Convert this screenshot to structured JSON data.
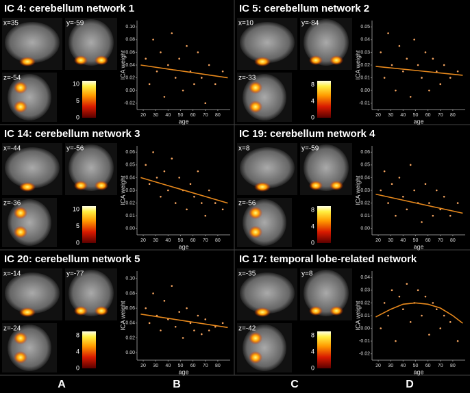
{
  "chart_data": [
    {
      "type": "scatter",
      "title": "IC 4: cerebellum network 1",
      "slices": [
        "x=35",
        "y=-59",
        "z=-54"
      ],
      "colorbar": {
        "lim": [
          0,
          11
        ],
        "ticks": [
          0,
          5,
          10
        ]
      },
      "x": [
        22,
        25,
        28,
        31,
        34,
        37,
        40,
        43,
        46,
        49,
        52,
        55,
        58,
        61,
        64,
        67,
        70,
        73,
        78,
        84
      ],
      "y": [
        0.05,
        0.01,
        0.08,
        0.03,
        0.06,
        -0.01,
        0.04,
        0.09,
        0.02,
        0.05,
        0.0,
        0.07,
        0.03,
        0.01,
        0.06,
        0.02,
        -0.02,
        0.04,
        0.01,
        0.03
      ],
      "color": "#f4a460",
      "fit": {
        "x": [
          18,
          88
        ],
        "y": [
          0.04,
          0.02
        ],
        "color": "#e8891c"
      },
      "xlabel": "age",
      "ylabel": "ICA weight",
      "xlim": [
        15,
        90
      ],
      "xticks": [
        20,
        30,
        40,
        50,
        60,
        70,
        80
      ],
      "ylim": [
        -0.03,
        0.11
      ],
      "yticks": [
        {
          "value": -0.02,
          "label": "-0.02"
        },
        {
          "value": 0,
          "label": "0.00"
        },
        {
          "value": 0.02,
          "label": "0.02"
        },
        {
          "value": 0.04,
          "label": "0.04"
        },
        {
          "value": 0.06,
          "label": "0.06"
        },
        {
          "value": 0.08,
          "label": "0.08"
        },
        {
          "value": 0.1,
          "label": "0.10"
        }
      ]
    },
    {
      "type": "scatter",
      "title": "IC 5:  cerebellum network 2",
      "slices": [
        "x=10",
        "y=-84",
        "z=-33"
      ],
      "colorbar": {
        "lim": [
          0,
          9
        ],
        "ticks": [
          0,
          4,
          8
        ]
      },
      "x": [
        22,
        25,
        28,
        31,
        34,
        37,
        40,
        43,
        46,
        49,
        52,
        55,
        58,
        61,
        64,
        67,
        70,
        73,
        78,
        84
      ],
      "y": [
        0.03,
        0.01,
        0.045,
        0.02,
        0.0,
        0.035,
        0.015,
        0.025,
        -0.005,
        0.04,
        0.02,
        0.01,
        0.03,
        0.0,
        0.025,
        0.015,
        0.005,
        0.02,
        0.01,
        0.015
      ],
      "color": "#f4a460",
      "fit": {
        "x": [
          18,
          88
        ],
        "y": [
          0.019,
          0.012
        ],
        "color": "#e8891c"
      },
      "xlabel": "age",
      "ylabel": "ICA weight",
      "xlim": [
        15,
        90
      ],
      "xticks": [
        20,
        30,
        40,
        50,
        60,
        70,
        80
      ],
      "ylim": [
        -0.015,
        0.055
      ],
      "yticks": [
        {
          "value": -0.01,
          "label": "-0.01"
        },
        {
          "value": 0,
          "label": "0.00"
        },
        0.01,
        0.02,
        0.03,
        0.04,
        0.05
      ]
    },
    {
      "type": "scatter",
      "title": "IC 14:  cerebellum network 3",
      "slices": [
        "x=-44",
        "y=-56",
        "z=-36"
      ],
      "colorbar": {
        "lim": [
          0,
          11
        ],
        "ticks": [
          0,
          5,
          10
        ]
      },
      "x": [
        22,
        25,
        28,
        31,
        34,
        37,
        40,
        43,
        46,
        49,
        52,
        55,
        58,
        61,
        64,
        67,
        70,
        73,
        78,
        84
      ],
      "y": [
        0.05,
        0.035,
        0.06,
        0.04,
        0.025,
        0.045,
        0.03,
        0.055,
        0.02,
        0.04,
        0.03,
        0.015,
        0.035,
        0.025,
        0.045,
        0.02,
        0.01,
        0.03,
        0.02,
        0.015
      ],
      "color": "#f4a460",
      "fit": {
        "x": [
          18,
          88
        ],
        "y": [
          0.04,
          0.02
        ],
        "color": "#e8891c"
      },
      "xlabel": "age",
      "ylabel": "ICA weight",
      "xlim": [
        15,
        90
      ],
      "xticks": [
        20,
        30,
        40,
        50,
        60,
        70,
        80
      ],
      "ylim": [
        -0.005,
        0.065
      ],
      "yticks": [
        {
          "value": 0,
          "label": "0.00"
        },
        0.01,
        0.02,
        0.03,
        0.04,
        0.05,
        0.06
      ]
    },
    {
      "type": "scatter",
      "title": "IC 19:  cerebellum network 4",
      "slices": [
        "x=8",
        "y=-59",
        "z=-56"
      ],
      "colorbar": {
        "lim": [
          0,
          9
        ],
        "ticks": [
          0,
          4,
          8
        ]
      },
      "x": [
        22,
        25,
        28,
        31,
        34,
        37,
        40,
        43,
        46,
        49,
        52,
        55,
        58,
        61,
        64,
        67,
        70,
        73,
        78,
        84
      ],
      "y": [
        0.03,
        0.045,
        0.02,
        0.035,
        0.01,
        0.04,
        0.025,
        0.015,
        0.05,
        0.03,
        0.02,
        0.005,
        0.035,
        0.02,
        0.01,
        0.03,
        0.015,
        0.025,
        0.01,
        0.02
      ],
      "color": "#f4a460",
      "fit": {
        "x": [
          18,
          88
        ],
        "y": [
          0.027,
          0.012
        ],
        "color": "#e8891c"
      },
      "xlabel": "age",
      "ylabel": "ICA weight",
      "xlim": [
        15,
        90
      ],
      "xticks": [
        20,
        30,
        40,
        50,
        60,
        70,
        80
      ],
      "ylim": [
        -0.005,
        0.065
      ],
      "yticks": [
        {
          "value": 0,
          "label": "0.00"
        },
        0.01,
        0.02,
        0.03,
        0.04,
        0.05,
        0.06
      ]
    },
    {
      "type": "scatter",
      "title": "IC 20:  cerebellum network 5",
      "slices": [
        "x=-14",
        "y=-77",
        "z=-24"
      ],
      "colorbar": {
        "lim": [
          0,
          9
        ],
        "ticks": [
          0,
          4,
          8
        ]
      },
      "x": [
        22,
        25,
        28,
        31,
        34,
        37,
        40,
        43,
        46,
        49,
        52,
        55,
        58,
        61,
        64,
        67,
        70,
        73,
        78,
        84
      ],
      "y": [
        0.06,
        0.04,
        0.08,
        0.05,
        0.03,
        0.07,
        0.045,
        0.09,
        0.035,
        0.055,
        0.02,
        0.06,
        0.04,
        0.03,
        0.05,
        0.025,
        0.045,
        0.03,
        0.035,
        0.04
      ],
      "color": "#f4a460",
      "fit": {
        "x": [
          18,
          88
        ],
        "y": [
          0.052,
          0.034
        ],
        "color": "#e8891c"
      },
      "xlabel": "age",
      "ylabel": "ICA weight",
      "xlim": [
        15,
        90
      ],
      "xticks": [
        20,
        30,
        40,
        50,
        60,
        70,
        80
      ],
      "ylim": [
        -0.01,
        0.11
      ],
      "yticks": [
        {
          "value": 0,
          "label": "0.00"
        },
        {
          "value": 0.02,
          "label": "0.02"
        },
        {
          "value": 0.04,
          "label": "0.04"
        },
        {
          "value": 0.06,
          "label": "0.06"
        },
        {
          "value": 0.08,
          "label": "0.08"
        },
        {
          "value": 0.1,
          "label": "0.10"
        }
      ]
    },
    {
      "type": "scatter",
      "title": "IC 17: temporal lobe-related network",
      "slices": [
        "x=-35",
        "y=8",
        "z=-42"
      ],
      "colorbar": {
        "lim": [
          0,
          9
        ],
        "ticks": [
          0,
          4,
          8
        ]
      },
      "x": [
        22,
        25,
        28,
        31,
        34,
        37,
        40,
        43,
        46,
        49,
        52,
        55,
        58,
        61,
        64,
        67,
        70,
        73,
        78,
        84
      ],
      "y": [
        0.0,
        0.02,
        0.01,
        0.03,
        -0.01,
        0.025,
        0.015,
        0.035,
        0.005,
        0.02,
        0.03,
        0.01,
        0.025,
        -0.005,
        0.02,
        0.015,
        0.0,
        0.01,
        0.005,
        -0.01
      ],
      "color": "#f4a460",
      "fit": {
        "x": [
          18,
          30,
          40,
          50,
          60,
          70,
          80,
          88
        ],
        "y": [
          0.009,
          0.015,
          0.019,
          0.02,
          0.019,
          0.016,
          0.01,
          0.004
        ],
        "color": "#e8891c"
      },
      "xlabel": "age",
      "ylabel": "ICA weight",
      "xlim": [
        15,
        90
      ],
      "xticks": [
        20,
        30,
        40,
        50,
        60,
        70,
        80
      ],
      "ylim": [
        -0.025,
        0.045
      ],
      "yticks": [
        {
          "value": -0.02,
          "label": "-0.02"
        },
        {
          "value": -0.01,
          "label": "-0.01"
        },
        {
          "value": 0,
          "label": "0.00"
        },
        0.01,
        0.02,
        0.03,
        0.04
      ]
    }
  ],
  "panel_labels": [
    "A",
    "B",
    "C",
    "D"
  ]
}
